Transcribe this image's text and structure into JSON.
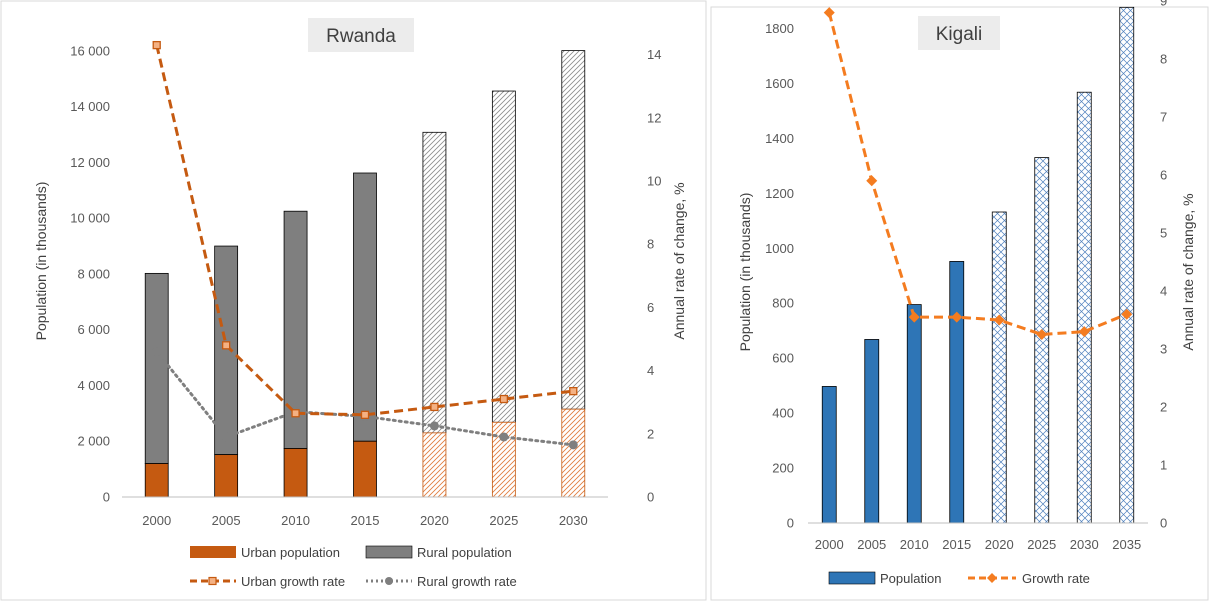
{
  "colors": {
    "urban": "#c55a11",
    "rural": "#7f7f7f",
    "kigali_bar": "#2e75b6",
    "kigali_line": "#f47c20",
    "projection_blue": "#4f81bd"
  },
  "chart_data": [
    {
      "type": "bar",
      "stacked": true,
      "title": "Rwanda",
      "categories": [
        "2000",
        "2005",
        "2010",
        "2015",
        "2020",
        "2025",
        "2030"
      ],
      "ylabel": "Population (in thousands)",
      "y2label": "Annual rate of change, %",
      "ylim": [
        0,
        17000
      ],
      "y2lim": [
        0,
        15
      ],
      "yticks": [
        0,
        2000,
        4000,
        6000,
        8000,
        10000,
        12000,
        14000,
        16000
      ],
      "ytick_labels": [
        "0",
        "2 000",
        "4 000",
        "6 000",
        "8 000",
        "10 000",
        "12 000",
        "14 000",
        "16 000"
      ],
      "y2ticks": [
        0,
        2,
        4,
        6,
        8,
        10,
        12,
        14
      ],
      "projected_from_index": 4,
      "series": [
        {
          "name": "Urban population",
          "kind": "bar",
          "values": [
            1200,
            1520,
            1740,
            2000,
            2300,
            2680,
            3150
          ]
        },
        {
          "name": "Rural population",
          "kind": "bar",
          "totals": [
            8020,
            9000,
            10250,
            11620,
            13080,
            14560,
            16010
          ]
        },
        {
          "name": "Urban growth rate",
          "kind": "line",
          "axis": "right",
          "style": "dashed",
          "values": [
            14.3,
            4.8,
            2.65,
            2.6,
            2.85,
            3.1,
            3.35
          ]
        },
        {
          "name": "Rural growth rate",
          "kind": "line",
          "axis": "right",
          "style": "dotted",
          "values": [
            4.6,
            1.9,
            2.7,
            2.55,
            2.25,
            1.9,
            1.65
          ]
        }
      ],
      "legend": [
        "Urban population",
        "Rural population",
        "Urban growth rate",
        "Rural growth rate"
      ],
      "legend_position": "bottom",
      "grid": false
    },
    {
      "type": "bar",
      "title": "Kigali",
      "categories": [
        "2000",
        "2005",
        "2010",
        "2015",
        "2020",
        "2025",
        "2030",
        "2035"
      ],
      "ylabel": "Population (in thousands)",
      "y2label": "Annual rate of change, %",
      "ylim": [
        0,
        1900
      ],
      "y2lim": [
        0,
        9
      ],
      "yticks": [
        0,
        200,
        400,
        600,
        800,
        1000,
        1200,
        1400,
        1600,
        1800
      ],
      "ytick_labels": [
        "0",
        "200",
        "400",
        "600",
        "800",
        "1000",
        "1200",
        "1400",
        "1600",
        "1800"
      ],
      "y2ticks": [
        0,
        1,
        2,
        3,
        4,
        5,
        6,
        7,
        8,
        9
      ],
      "projected_from_index": 4,
      "series": [
        {
          "name": "Population",
          "kind": "bar",
          "values": [
            497,
            668,
            795,
            952,
            1132,
            1330,
            1568,
            1877
          ]
        },
        {
          "name": "Growth rate",
          "kind": "line",
          "axis": "right",
          "style": "dashed",
          "values": [
            8.8,
            5.9,
            3.55,
            3.55,
            3.5,
            3.25,
            3.3,
            3.6
          ]
        }
      ],
      "legend": [
        "Population",
        "Growth rate"
      ],
      "legend_position": "bottom",
      "grid": false
    }
  ]
}
